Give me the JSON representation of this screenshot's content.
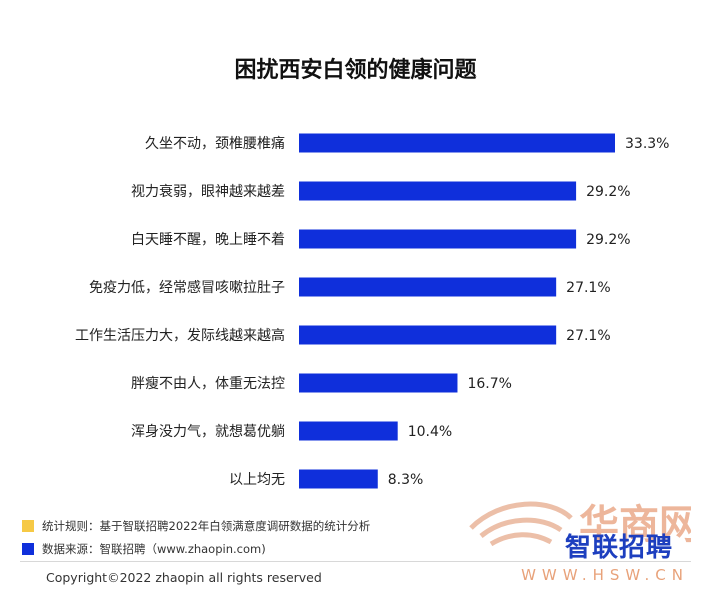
{
  "chart_data": {
    "type": "bar",
    "orientation": "horizontal",
    "title": "困扰西安白领的健康问题",
    "categories": [
      "久坐不动，颈椎腰椎痛",
      "视力衰弱，眼神越来越差",
      "白天睡不醒，晚上睡不着",
      "免疫力低，经常感冒咳嗽拉肚子",
      "工作生活压力大，发际线越来越高",
      "胖瘦不由人，体重无法控",
      "浑身没力气，就想葛优躺",
      "以上均无"
    ],
    "values": [
      33.3,
      29.2,
      29.2,
      27.1,
      27.1,
      16.7,
      10.4,
      8.3
    ],
    "value_labels": [
      "33.3%",
      "29.2%",
      "29.2%",
      "27.1%",
      "27.1%",
      "16.7%",
      "10.4%",
      "8.3%"
    ],
    "xlim": [
      0,
      33.3
    ],
    "bar_color": "#0f2fdb",
    "grid": false
  },
  "notes": [
    {
      "color": "#f6c945",
      "text": "统计规则：基于智联招聘2022年白领满意度调研数据的统计分析"
    },
    {
      "color": "#0f2fdb",
      "text": "数据来源：智联招聘（www.zhaopin.com)"
    }
  ],
  "copyright": "Copyright©2022 zhaopin all rights reserved",
  "watermark": {
    "brand": "智联招聘",
    "site_logo_text": "华商网",
    "url": "WWW.HSW.CN"
  }
}
